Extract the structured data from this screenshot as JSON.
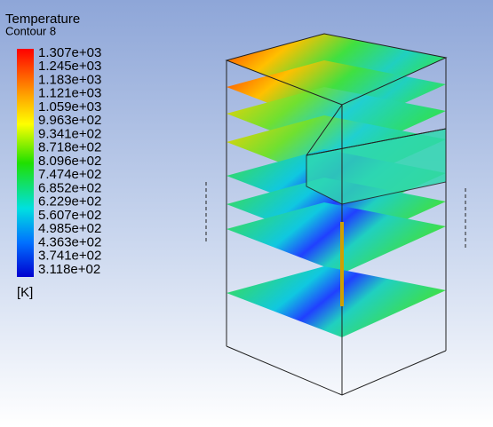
{
  "legend": {
    "title": "Temperature",
    "subtitle": "Contour 8",
    "levels": [
      "1.307e+03",
      "1.245e+03",
      "1.183e+03",
      "1.121e+03",
      "1.059e+03",
      "9.963e+02",
      "9.341e+02",
      "8.718e+02",
      "8.096e+02",
      "7.474e+02",
      "6.852e+02",
      "6.229e+02",
      "5.607e+02",
      "4.985e+02",
      "4.363e+02",
      "3.741e+02",
      "3.118e+02"
    ],
    "unit": "[K]"
  }
}
